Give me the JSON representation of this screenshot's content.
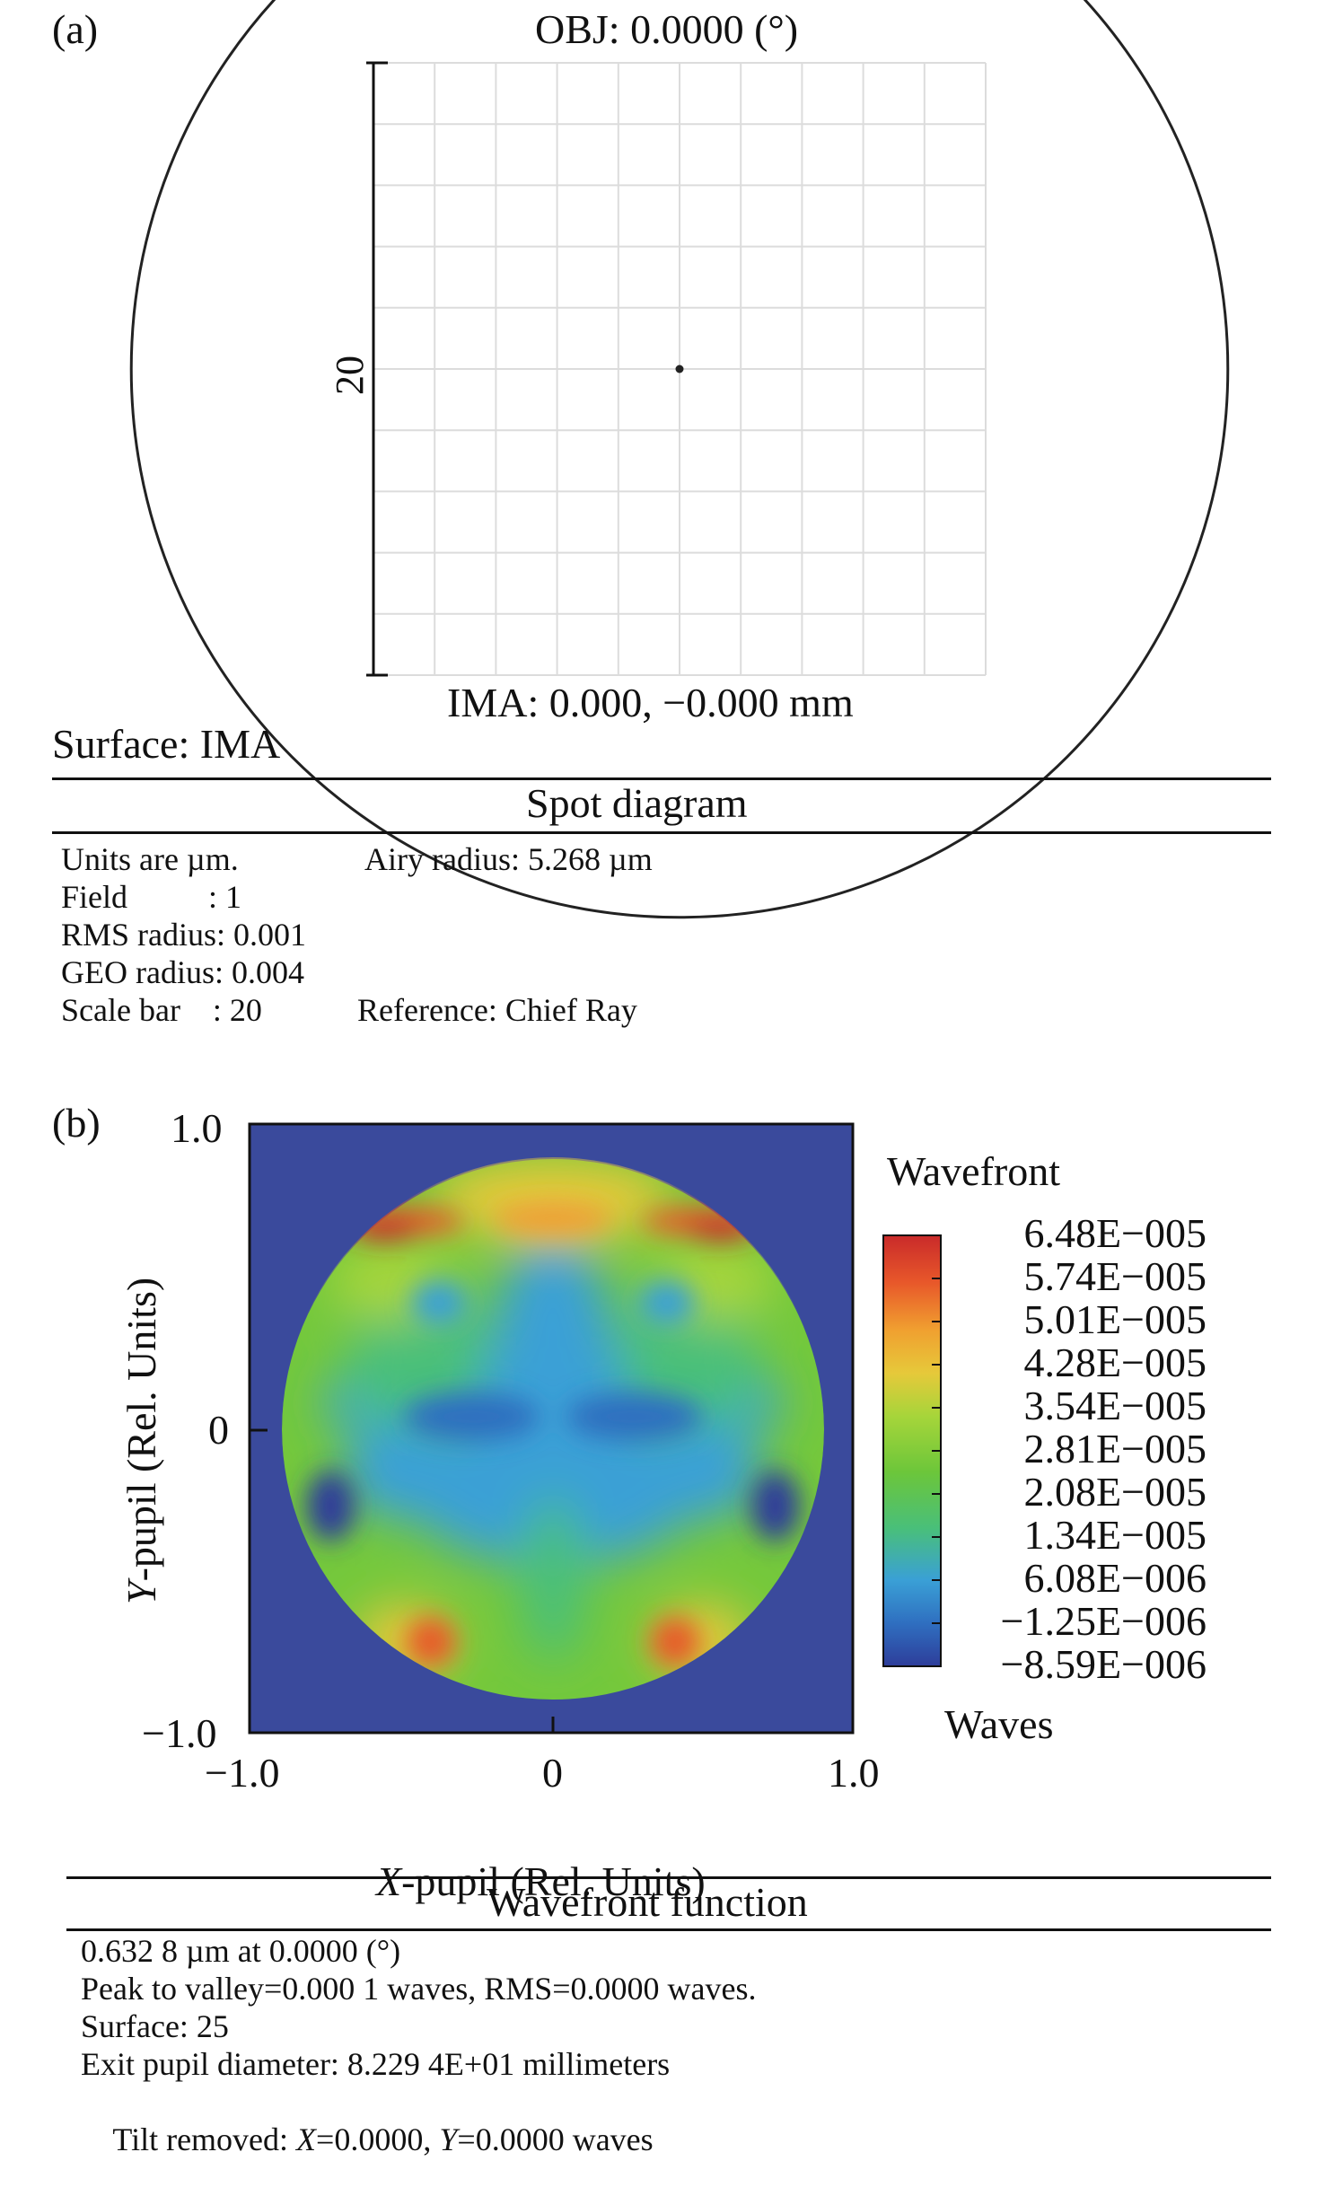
{
  "panel_a": {
    "label": "(a)",
    "title": "OBJ: 0.0000 (°)",
    "scale_label": "20",
    "image_label": "IMA: 0.000, −0.000 mm",
    "surface": "Surface: IMA",
    "section_title": "Spot diagram",
    "info": {
      "units": "Units are µm.",
      "airy": "Airy radius: 5.268 µm",
      "field": "Field          : 1",
      "rms": "RMS radius: 0.001",
      "geo": "GEO radius: 0.004",
      "scale": "Scale bar    : 20",
      "reference": "Reference: Chief Ray"
    },
    "circle_radius_scale_units": 5.268,
    "scale_bar_units": 20,
    "grid_cells": 10
  },
  "panel_b": {
    "label": "(b)",
    "section_title": "Wavefront function",
    "legend_title": "Wavefront",
    "legend_unit": "Waves",
    "info": {
      "line1": "0.632 8 µm at 0.0000 (°)",
      "line2": "Peak to valley=0.000 1 waves, RMS=0.0000 waves.",
      "line3": "Surface: 25",
      "line4": "Exit pupil diameter: 8.229 4E+01 millimeters",
      "line5_pre": "Tilt removed: ",
      "line5_x": "X",
      "line5_mid": "=0.0000, ",
      "line5_y": "Y",
      "line5_post": "=0.0000 waves"
    }
  },
  "chart_data": {
    "type": "heatmap",
    "x_axis": {
      "label_italic": "X",
      "label_rest": "-pupil (Rel. Units)",
      "range": [
        -1.0,
        1.0
      ],
      "ticks": [
        "−1.0",
        "0",
        "1.0"
      ]
    },
    "y_axis": {
      "label_italic": "Y",
      "label_rest": "-pupil (Rel. Units)",
      "range": [
        -1.0,
        1.0
      ],
      "ticks": [
        "−1.0",
        "0",
        "1.0"
      ]
    },
    "colorbar_ticks": [
      "6.48E−005",
      "5.74E−005",
      "5.01E−005",
      "4.28E−005",
      "3.54E−005",
      "2.81E−005",
      "2.08E−005",
      "1.34E−005",
      "6.08E−006",
      "−1.25E−006",
      "−8.59E−006"
    ],
    "background_color": "#3a4a9c",
    "colormap": [
      "#2e3d9a",
      "#2f6fc0",
      "#3aa0d6",
      "#49bf7a",
      "#6cc63a",
      "#a6d53a",
      "#e6c93a",
      "#f0a030",
      "#e8582a",
      "#c92a2a"
    ]
  }
}
